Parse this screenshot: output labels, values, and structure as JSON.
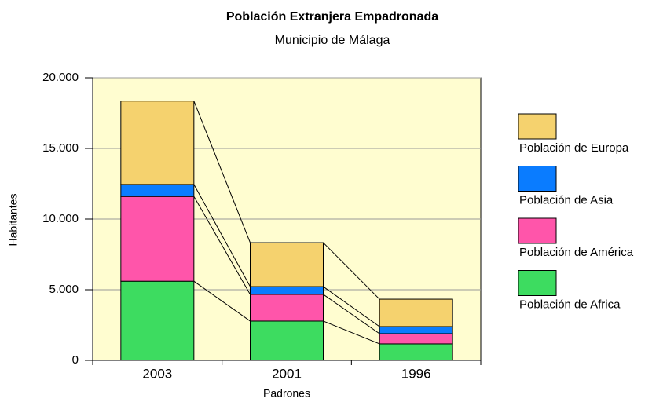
{
  "chart_data": {
    "type": "stacked_bar",
    "title": "Población  Extranjera Empadronada",
    "subtitle": "Municipio de Málaga",
    "x_label": "Padrones",
    "y_label": "Habitantes",
    "categories": [
      "2003",
      "2001",
      "1996"
    ],
    "series": [
      {
        "name": "Población de Africa",
        "color": "#3ddc60",
        "values": [
          5600,
          2780,
          1170
        ]
      },
      {
        "name": "Población de América",
        "color": "#ff55aa",
        "values": [
          6000,
          1890,
          720
        ]
      },
      {
        "name": "Población de Asia",
        "color": "#0a7cff",
        "values": [
          850,
          550,
          500
        ]
      },
      {
        "name": "Población de Europa",
        "color": "#f5d26e",
        "values": [
          5900,
          3110,
          1940
        ]
      }
    ],
    "ylim": [
      0,
      20000
    ],
    "yticks": [
      0,
      {
        "value": 5000,
        "label": "5.000"
      },
      {
        "value": 10000,
        "label": "10.000"
      },
      {
        "value": 15000,
        "label": "15.000"
      },
      {
        "value": 20000,
        "label": "20.000"
      }
    ],
    "grid": true,
    "legend": "right"
  }
}
